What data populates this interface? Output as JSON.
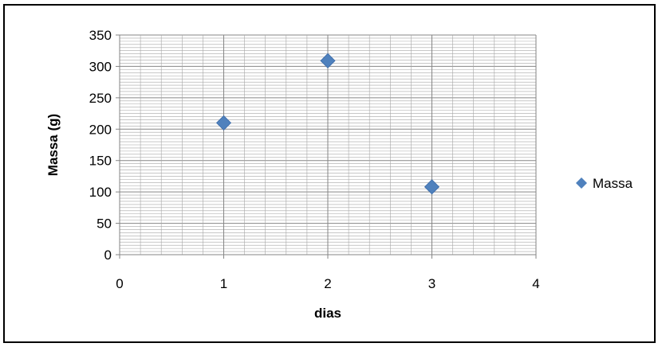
{
  "chart_data": {
    "type": "scatter",
    "title": "",
    "xlabel": "dias",
    "ylabel": "Massa (g)",
    "xlim": [
      0,
      4
    ],
    "ylim": [
      0,
      350
    ],
    "x_ticks": [
      0,
      1,
      2,
      3,
      4
    ],
    "y_ticks": [
      0,
      50,
      100,
      150,
      200,
      250,
      300,
      350
    ],
    "grid": true,
    "legend_position": "right",
    "series": [
      {
        "name": "Massa",
        "color": "#4F81BD",
        "marker": "diamond",
        "x": [
          1,
          2,
          3
        ],
        "y": [
          210,
          309,
          108
        ]
      }
    ]
  }
}
